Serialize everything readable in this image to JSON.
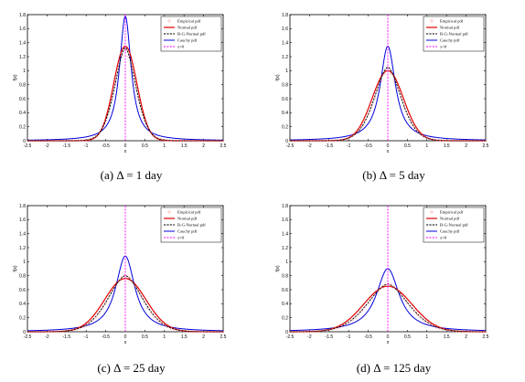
{
  "chart_data": [
    {
      "type": "line",
      "caption": "(a) Δ = 1 day",
      "xlabel": "x",
      "ylabel": "f(x)",
      "xlim": [
        -2.5,
        2.5
      ],
      "ylim": [
        0,
        1.8
      ],
      "xticks": [
        "-2.5",
        "-2",
        "-1.5",
        "-1",
        "-0.5",
        "0",
        "0.5",
        "1",
        "1.5",
        "2",
        "2.5"
      ],
      "yticks": [
        "0",
        "0.2",
        "0.4",
        "0.6",
        "0.8",
        "1",
        "1.2",
        "1.4",
        "1.6",
        "1.8"
      ],
      "legend_position": "top-right",
      "legend": [
        "Empirical pdf",
        "Normal pdf",
        "B-G-Normal pdf",
        "Cauchy pdf",
        "x=0"
      ],
      "peaks": {
        "empirical": 1.32,
        "normal": 1.35,
        "bg_normal": 1.33,
        "cauchy": 1.78
      },
      "x_marker": 0
    },
    {
      "type": "line",
      "caption": "(b) Δ = 5 day",
      "xlabel": "x",
      "ylabel": "f(x)",
      "xlim": [
        -2.5,
        2.5
      ],
      "ylim": [
        0,
        1.8
      ],
      "xticks": [
        "-2.5",
        "-2",
        "-1.5",
        "-1",
        "-0.5",
        "0",
        "0.5",
        "1",
        "1.5",
        "2",
        "2.5"
      ],
      "yticks": [
        "0",
        "0.2",
        "0.4",
        "0.6",
        "0.8",
        "1",
        "1.2",
        "1.4",
        "1.6",
        "1.8"
      ],
      "legend_position": "top-right",
      "legend": [
        "Empirical pdf",
        "Normal pdf",
        "B-G-Normal pdf",
        "Cauchy pdf",
        "x=0"
      ],
      "peaks": {
        "empirical": 1.02,
        "normal": 1.0,
        "bg_normal": 1.05,
        "cauchy": 1.35
      },
      "x_marker": 0
    },
    {
      "type": "line",
      "caption": "(c) Δ = 25 day",
      "xlabel": "x",
      "ylabel": "f(x)",
      "xlim": [
        -2.5,
        2.5
      ],
      "ylim": [
        0,
        1.8
      ],
      "xticks": [
        "-2.5",
        "-2",
        "-1.5",
        "-1",
        "-0.5",
        "0",
        "0.5",
        "1",
        "1.5",
        "2",
        "2.5"
      ],
      "yticks": [
        "0",
        "0.2",
        "0.4",
        "0.6",
        "0.8",
        "1",
        "1.2",
        "1.4",
        "1.6",
        "1.8"
      ],
      "legend_position": "top-right",
      "legend": [
        "Empirical pdf",
        "Normal pdf",
        "B-G-Normal pdf",
        "Cauchy pdf",
        "x=0"
      ],
      "peaks": {
        "empirical": 0.82,
        "normal": 0.76,
        "bg_normal": 0.8,
        "cauchy": 1.08
      },
      "x_marker": 0
    },
    {
      "type": "line",
      "caption": "(d) Δ = 125 day",
      "xlabel": "x",
      "ylabel": "f(x)",
      "xlim": [
        -2.5,
        2.5
      ],
      "ylim": [
        0,
        1.8
      ],
      "xticks": [
        "-2.5",
        "-2",
        "-1.5",
        "-1",
        "-0.5",
        "0",
        "0.5",
        "1",
        "1.5",
        "2",
        "2.5"
      ],
      "yticks": [
        "0",
        "0.2",
        "0.4",
        "0.6",
        "0.8",
        "1",
        "1.2",
        "1.4",
        "1.6",
        "1.8"
      ],
      "legend_position": "top-right",
      "legend": [
        "Empirical pdf",
        "Normal pdf",
        "B-G-Normal pdf",
        "Cauchy pdf",
        "x=0"
      ],
      "peaks": {
        "empirical": 0.7,
        "normal": 0.65,
        "bg_normal": 0.68,
        "cauchy": 0.9
      },
      "x_marker": 0
    }
  ],
  "colors": {
    "empirical": "#ff8080",
    "normal": "#e00000",
    "bg_normal": "#000000",
    "cauchy": "#0000dd",
    "x_marker": "#ff00ff"
  }
}
